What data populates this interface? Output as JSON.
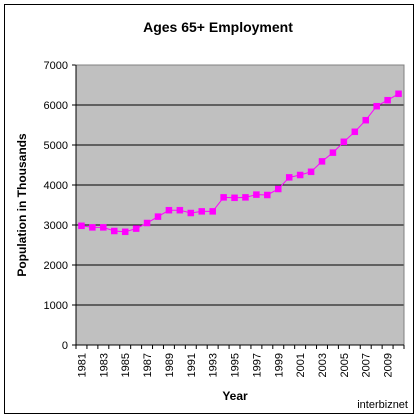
{
  "chart_data": {
    "type": "line",
    "title": "Ages 65+ Employment",
    "xlabel": "Year",
    "ylabel": "Population in Thousands",
    "ylim": [
      0,
      7000
    ],
    "yticks": [
      "0",
      "1000",
      "2000",
      "3000",
      "4000",
      "5000",
      "6000",
      "7000"
    ],
    "xtick_labels": [
      "1981",
      "1983",
      "1985",
      "1987",
      "1989",
      "1991",
      "1993",
      "1995",
      "1997",
      "1999",
      "2001",
      "2003",
      "2005",
      "2007",
      "2009"
    ],
    "grid": true,
    "legend": "none",
    "x": [
      1981,
      1982,
      1983,
      1984,
      1985,
      1986,
      1987,
      1988,
      1989,
      1990,
      1991,
      1992,
      1993,
      1994,
      1995,
      1996,
      1997,
      1998,
      1999,
      2000,
      2001,
      2002,
      2003,
      2004,
      2005,
      2006,
      2007,
      2008,
      2009,
      2010
    ],
    "series": [
      {
        "values": [
          2980,
          2940,
          2940,
          2850,
          2830,
          2910,
          3050,
          3210,
          3370,
          3370,
          3300,
          3340,
          3340,
          3690,
          3680,
          3690,
          3760,
          3750,
          3900,
          4190,
          4250,
          4330,
          4590,
          4810,
          5080,
          5330,
          5620,
          5970,
          6120,
          6280
        ]
      }
    ],
    "colors": {
      "plot_background": "#c0c0c0",
      "series_line": "#ff00ff",
      "gridline": "#000000"
    }
  },
  "watermark": "interbiznet"
}
